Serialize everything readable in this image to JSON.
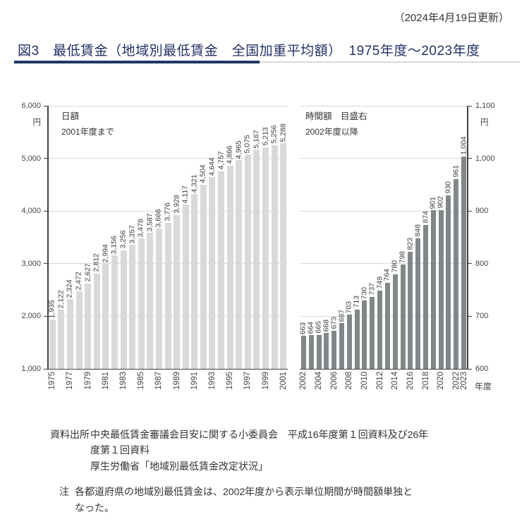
{
  "page": {
    "updated": "（2024年4月19日更新）",
    "title": "図3　最低賃金（地域別最低賃金　全国加重平均額）　1975年度～2023年度"
  },
  "colors": {
    "title_text": "#243165",
    "underline_dark": "#1f3864",
    "underline_light": "#d9d9d9",
    "daily_bar": "#d9d9d9",
    "hourly_bar": "#818789",
    "gridline": "#d9d9d9",
    "axis": "#404040"
  },
  "chart_data": [
    {
      "type": "bar",
      "title": "日額",
      "subtitle": "2001年度まで",
      "unit": "円",
      "axis_side": "left",
      "ylim": [
        1000,
        6000
      ],
      "yticks": [
        6000,
        5000,
        4000,
        3000,
        2000,
        1000
      ],
      "ytick_labels": [
        "6,000",
        "5,000",
        "4,000",
        "3,000",
        "2,000",
        "1,000"
      ],
      "grid": true,
      "categories": [
        "1975",
        "1976",
        "1977",
        "1978",
        "1979",
        "1980",
        "1981",
        "1982",
        "1983",
        "1984",
        "1985",
        "1986",
        "1987",
        "1988",
        "1989",
        "1990",
        "1991",
        "1992",
        "1993",
        "1994",
        "1995",
        "1996",
        "1997",
        "1998",
        "1999",
        "2000",
        "2001"
      ],
      "xtick_labels": [
        "1975",
        "1977",
        "1979",
        "1981",
        "1983",
        "1985",
        "1987",
        "1989",
        "1991",
        "1993",
        "1995",
        "1997",
        "1999",
        "2001"
      ],
      "values": [
        1935,
        2122,
        2324,
        2472,
        2627,
        2812,
        2994,
        3156,
        3256,
        3357,
        3478,
        3587,
        3666,
        3776,
        3928,
        4117,
        4321,
        4504,
        4644,
        4757,
        4866,
        4965,
        5075,
        5167,
        5213,
        5256,
        5288
      ],
      "value_labels": [
        "1,935",
        "2,122",
        "2,324",
        "2,472",
        "2,627",
        "2,812",
        "2,994",
        "3,156",
        "3,256",
        "3,357",
        "3,478",
        "3,587",
        "3,666",
        "3,776",
        "3,928",
        "4,117",
        "4,321",
        "4,504",
        "4,644",
        "4,757",
        "4,866",
        "4,965",
        "5,075",
        "5,167",
        "5,213",
        "5,256",
        "5,288"
      ]
    },
    {
      "type": "bar",
      "title": "時間額　目盛右",
      "subtitle": "2002年度以降",
      "unit": "円",
      "xaxis_label": "年度",
      "axis_side": "right",
      "ylim": [
        600,
        1100
      ],
      "yticks": [
        1100,
        1000,
        900,
        800,
        700,
        600
      ],
      "ytick_labels": [
        "1,100",
        "1,000",
        "900",
        "800",
        "700",
        "600"
      ],
      "grid": true,
      "categories": [
        "2002",
        "2003",
        "2004",
        "2005",
        "2006",
        "2007",
        "2008",
        "2009",
        "2010",
        "2011",
        "2012",
        "2013",
        "2014",
        "2015",
        "2016",
        "2017",
        "2018",
        "2019",
        "2020",
        "2021",
        "2022",
        "2023"
      ],
      "xtick_labels": [
        "2002",
        "2004",
        "2006",
        "2008",
        "2010",
        "2012",
        "2014",
        "2016",
        "2018",
        "2020",
        "2022",
        "2023"
      ],
      "values": [
        663,
        664,
        665,
        668,
        673,
        687,
        703,
        713,
        730,
        737,
        749,
        764,
        780,
        798,
        823,
        848,
        874,
        901,
        902,
        930,
        961,
        1004
      ],
      "value_labels": [
        "663",
        "664",
        "665",
        "668",
        "673",
        "687",
        "703",
        "713",
        "730",
        "737",
        "749",
        "764",
        "780",
        "798",
        "823",
        "848",
        "874",
        "901",
        "902",
        "930",
        "961",
        "1,004"
      ]
    }
  ],
  "footer": {
    "source_label": "資料出所",
    "source_lines": [
      "中央最低賃金審議会目安に関する小委員会　平成16年度第１回資料及び26年",
      "度第１回資料",
      "厚生労働省「地域別最低賃金改定状況」"
    ],
    "note_label": "注",
    "note_lines": [
      "各都道府県の地域別最低賃金は、2002年度から表示単位期間が時間額単独と",
      "なった。"
    ]
  }
}
